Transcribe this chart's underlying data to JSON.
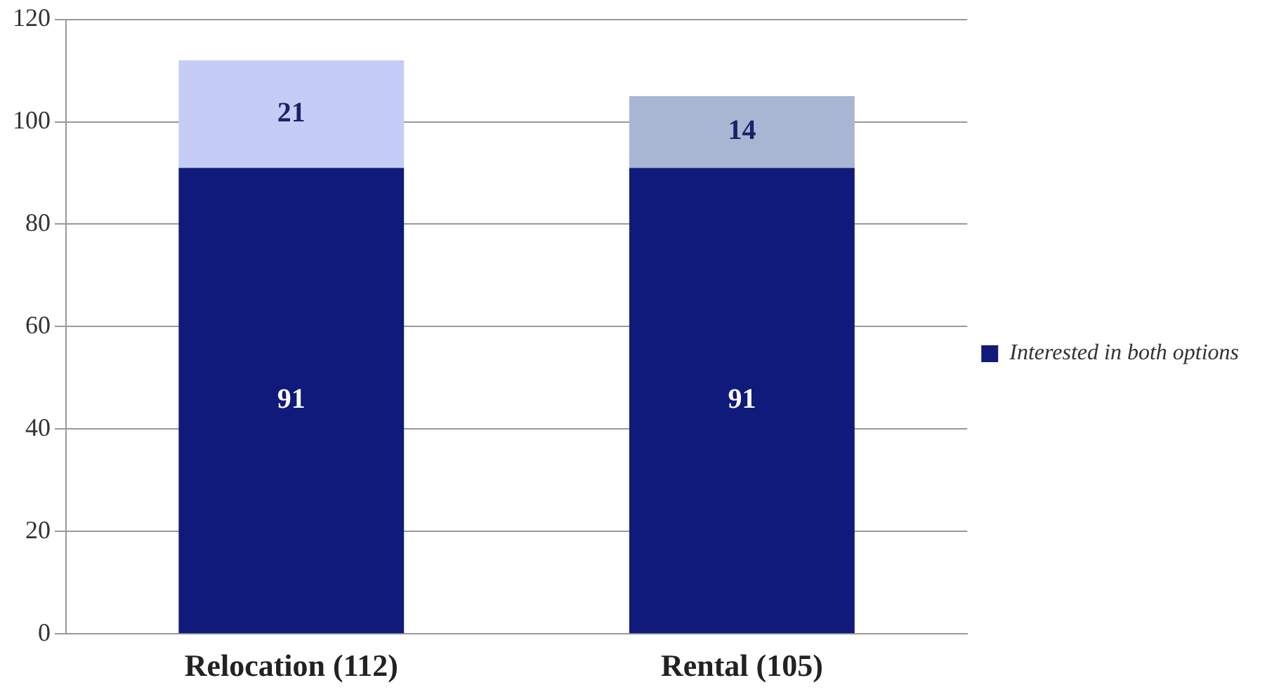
{
  "chart_data": {
    "type": "bar",
    "stacked": true,
    "categories": [
      "Relocation (112)",
      "Rental (105)"
    ],
    "series": [
      {
        "name": "Interested in both options",
        "color": "#101a7a",
        "values": [
          91,
          91
        ]
      },
      {
        "colors": [
          "#c5cdf7",
          "#a8b5d3"
        ],
        "values": [
          21,
          14
        ]
      }
    ],
    "ylim": [
      0,
      120
    ],
    "yticks": [
      0,
      20,
      40,
      60,
      80,
      100,
      120
    ],
    "grid": "y",
    "legend": "right",
    "data_labels": true
  }
}
